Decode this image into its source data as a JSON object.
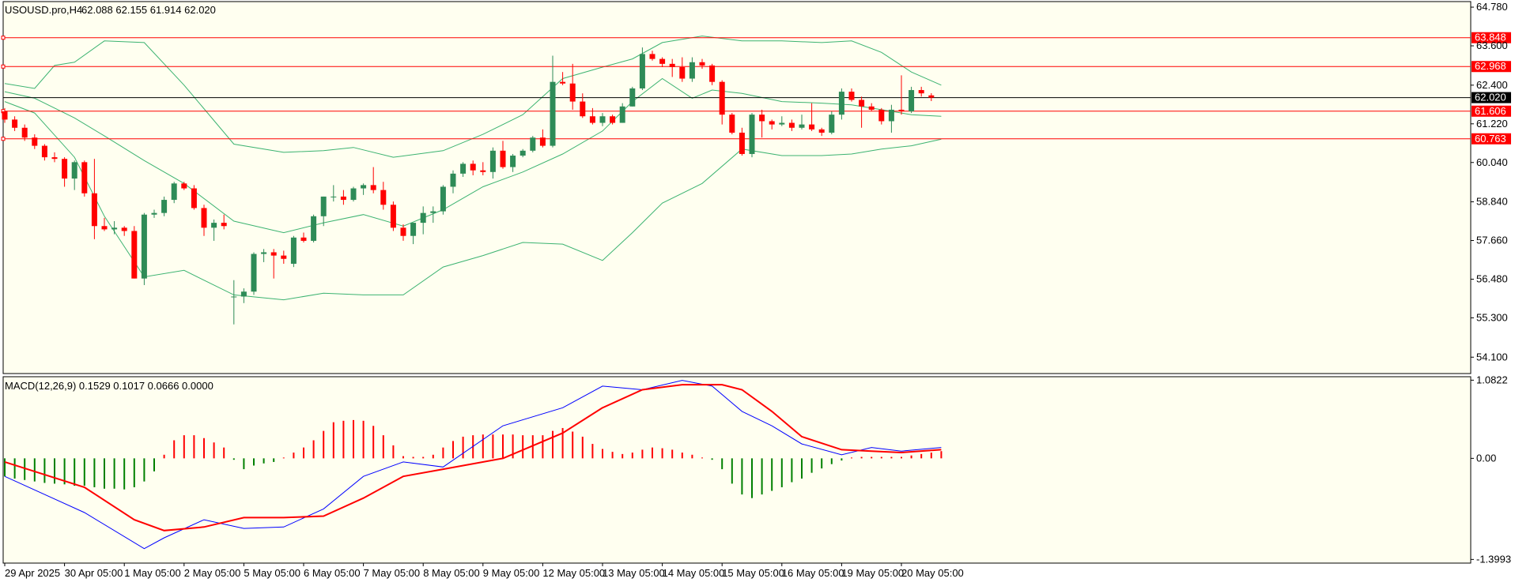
{
  "header": {
    "symbol_info": "USOUSD.pro,H4",
    "ohlc": "62.088 62.155 61.914 62.020",
    "macd_info": "MACD(12,26,9) 0.1529 0.1017 0.0666 0.0000"
  },
  "colors": {
    "background": "#fffff0",
    "frame": "#000000",
    "bull_candle": "#2e8b57",
    "bear_candle": "#ff0000",
    "bollinger": "#3cb371",
    "hline": "#ff0000",
    "current_line": "#000000",
    "macd_line": "#0000ff",
    "signal_line": "#ff0000",
    "hist_positive": "#ff0000",
    "hist_negative": "#008000"
  },
  "chart_data": [
    {
      "type": "candlestick",
      "name": "price",
      "ylim": [
        53.6,
        64.95
      ],
      "y_ticks": [
        "64.780",
        "63.600",
        "62.400",
        "61.220",
        "60.040",
        "58.840",
        "57.660",
        "56.480",
        "55.300",
        "54.100"
      ],
      "x_ticks": [
        "29 Apr 2025",
        "30 Apr 05:00",
        "1 May 05:00",
        "2 May 05:00",
        "5 May 05:00",
        "6 May 05:00",
        "7 May 05:00",
        "8 May 05:00",
        "9 May 05:00",
        "12 May 05:00",
        "13 May 05:00",
        "14 May 05:00",
        "15 May 05:00",
        "16 May 05:00",
        "19 May 05:00",
        "20 May 05:00"
      ],
      "horizontal_lines": [
        {
          "label": "63.848",
          "value": 63.848
        },
        {
          "label": "62.968",
          "value": 62.968
        },
        {
          "label": "61.606",
          "value": 61.606
        },
        {
          "label": "60.763",
          "value": 60.763
        }
      ],
      "current_price": {
        "label": "62.020",
        "value": 62.02
      },
      "candles": [
        [
          61.6,
          61.7,
          61.25,
          61.35
        ],
        [
          61.35,
          61.45,
          61.0,
          61.1
        ],
        [
          61.1,
          61.2,
          60.7,
          60.8
        ],
        [
          60.8,
          60.9,
          60.45,
          60.55
        ],
        [
          60.55,
          60.6,
          60.1,
          60.2
        ],
        [
          60.2,
          60.35,
          60.05,
          60.15
        ],
        [
          60.15,
          60.2,
          59.3,
          59.55
        ],
        [
          59.55,
          60.1,
          59.2,
          60.05
        ],
        [
          60.05,
          60.1,
          59.0,
          59.1
        ],
        [
          59.1,
          60.15,
          57.7,
          58.1
        ],
        [
          58.1,
          58.35,
          57.95,
          58.0
        ],
        [
          58.0,
          58.25,
          57.85,
          58.05
        ],
        [
          58.05,
          58.1,
          57.8,
          57.95
        ],
        [
          57.95,
          58.1,
          56.5,
          56.5
        ],
        [
          56.5,
          58.5,
          56.3,
          58.45
        ],
        [
          58.45,
          58.6,
          58.35,
          58.5
        ],
        [
          58.5,
          59.0,
          58.4,
          58.9
        ],
        [
          58.9,
          59.45,
          58.8,
          59.4
        ],
        [
          59.4,
          59.45,
          59.2,
          59.25
        ],
        [
          59.25,
          59.35,
          58.6,
          58.65
        ],
        [
          58.65,
          58.75,
          57.8,
          58.05
        ],
        [
          58.05,
          58.3,
          57.65,
          58.2
        ],
        [
          58.2,
          58.45,
          58.0,
          58.1
        ],
        [
          55.95,
          56.45,
          55.1,
          55.95
        ],
        [
          55.95,
          56.2,
          55.75,
          56.1
        ],
        [
          56.1,
          57.3,
          56.0,
          57.25
        ],
        [
          57.25,
          57.4,
          57.0,
          57.3
        ],
        [
          57.3,
          57.4,
          56.5,
          57.2
        ],
        [
          57.2,
          57.35,
          56.95,
          57.1
        ],
        [
          56.95,
          57.8,
          56.85,
          57.75
        ],
        [
          57.75,
          57.9,
          57.6,
          57.65
        ],
        [
          57.65,
          58.45,
          57.6,
          58.4
        ],
        [
          58.4,
          59.0,
          58.1,
          59.0
        ],
        [
          59.0,
          59.35,
          58.85,
          59.0
        ],
        [
          59.0,
          59.2,
          58.75,
          58.9
        ],
        [
          58.9,
          59.3,
          58.85,
          59.25
        ],
        [
          59.25,
          59.4,
          59.05,
          59.35
        ],
        [
          59.35,
          59.9,
          59.1,
          59.2
        ],
        [
          59.2,
          59.45,
          58.6,
          58.75
        ],
        [
          58.75,
          58.85,
          57.95,
          58.05
        ],
        [
          58.05,
          58.15,
          57.65,
          57.8
        ],
        [
          57.8,
          58.2,
          57.55,
          58.2
        ],
        [
          58.2,
          58.7,
          57.85,
          58.5
        ],
        [
          58.5,
          58.7,
          58.2,
          58.55
        ],
        [
          58.55,
          59.35,
          58.45,
          59.3
        ],
        [
          59.3,
          59.8,
          59.1,
          59.7
        ],
        [
          59.7,
          60.05,
          59.6,
          60.0
        ],
        [
          60.0,
          60.1,
          59.65,
          59.8
        ],
        [
          59.8,
          60.05,
          59.65,
          59.75
        ],
        [
          59.75,
          60.5,
          59.55,
          60.4
        ],
        [
          60.4,
          60.7,
          59.85,
          59.9
        ],
        [
          59.9,
          60.3,
          59.75,
          60.25
        ],
        [
          60.25,
          60.45,
          60.2,
          60.4
        ],
        [
          60.4,
          60.85,
          60.35,
          60.8
        ],
        [
          60.8,
          61.05,
          60.5,
          60.55
        ],
        [
          60.55,
          63.3,
          60.5,
          62.5
        ],
        [
          62.5,
          62.8,
          62.4,
          62.45
        ],
        [
          62.45,
          63.05,
          61.65,
          61.9
        ],
        [
          61.9,
          62.15,
          61.4,
          61.45
        ],
        [
          61.45,
          61.7,
          61.2,
          61.25
        ],
        [
          61.25,
          61.55,
          61.15,
          61.45
        ],
        [
          61.45,
          61.5,
          61.2,
          61.25
        ],
        [
          61.25,
          61.85,
          61.25,
          61.75
        ],
        [
          61.75,
          62.35,
          61.75,
          62.3
        ],
        [
          62.3,
          63.55,
          62.25,
          63.35
        ],
        [
          63.35,
          63.45,
          63.15,
          63.2
        ],
        [
          63.2,
          63.25,
          62.95,
          63.05
        ],
        [
          63.05,
          63.2,
          62.65,
          62.95
        ],
        [
          62.95,
          63.25,
          62.5,
          62.6
        ],
        [
          62.6,
          63.25,
          62.5,
          63.1
        ],
        [
          63.1,
          63.2,
          62.9,
          63.0
        ],
        [
          63.0,
          63.05,
          62.4,
          62.5
        ],
        [
          62.5,
          62.55,
          61.2,
          61.5
        ],
        [
          61.5,
          61.55,
          60.9,
          60.95
        ],
        [
          60.95,
          61.1,
          60.25,
          60.3
        ],
        [
          60.3,
          61.55,
          60.2,
          61.5
        ],
        [
          61.5,
          61.65,
          60.8,
          61.3
        ],
        [
          61.3,
          61.35,
          61.05,
          61.2
        ],
        [
          61.2,
          61.45,
          61.15,
          61.25
        ],
        [
          61.25,
          61.35,
          61.0,
          61.1
        ],
        [
          61.1,
          61.5,
          61.05,
          61.2
        ],
        [
          61.2,
          61.85,
          61.0,
          61.05
        ],
        [
          61.05,
          61.1,
          60.85,
          60.95
        ],
        [
          60.95,
          61.6,
          60.9,
          61.5
        ],
        [
          61.5,
          62.3,
          61.35,
          62.2
        ],
        [
          62.2,
          62.3,
          61.9,
          61.95
        ],
        [
          61.95,
          62.05,
          61.1,
          61.75
        ],
        [
          61.75,
          61.85,
          61.6,
          61.65
        ],
        [
          61.65,
          61.7,
          61.2,
          61.3
        ],
        [
          61.3,
          61.8,
          60.95,
          61.65
        ],
        [
          61.65,
          62.7,
          61.5,
          61.6
        ],
        [
          61.6,
          62.35,
          61.55,
          62.25
        ],
        [
          62.25,
          62.35,
          62.05,
          62.15
        ],
        [
          62.088,
          62.155,
          61.914,
          62.02
        ]
      ],
      "bollinger_upper": [
        [
          0,
          62.45
        ],
        [
          3,
          62.3
        ],
        [
          5,
          63.0
        ],
        [
          7,
          63.1
        ],
        [
          10,
          63.75
        ],
        [
          14,
          63.7
        ],
        [
          18,
          62.4
        ],
        [
          23,
          60.6
        ],
        [
          28,
          60.35
        ],
        [
          32,
          60.4
        ],
        [
          35,
          60.5
        ],
        [
          39,
          60.2
        ],
        [
          44,
          60.4
        ],
        [
          48,
          60.9
        ],
        [
          52,
          61.5
        ],
        [
          56,
          62.6
        ],
        [
          60,
          62.95
        ],
        [
          63,
          63.2
        ],
        [
          66,
          63.7
        ],
        [
          70,
          63.9
        ],
        [
          74,
          63.75
        ],
        [
          78,
          63.75
        ],
        [
          82,
          63.7
        ],
        [
          85,
          63.75
        ],
        [
          88,
          63.4
        ],
        [
          91,
          62.8
        ],
        [
          94,
          62.4
        ]
      ],
      "bollinger_middle": [
        [
          0,
          62.2
        ],
        [
          3,
          62.0
        ],
        [
          7,
          61.4
        ],
        [
          10,
          60.85
        ],
        [
          14,
          60.1
        ],
        [
          18,
          59.4
        ],
        [
          23,
          58.25
        ],
        [
          28,
          57.9
        ],
        [
          32,
          58.2
        ],
        [
          36,
          58.45
        ],
        [
          40,
          58.1
        ],
        [
          44,
          58.6
        ],
        [
          48,
          59.3
        ],
        [
          52,
          59.75
        ],
        [
          56,
          60.3
        ],
        [
          60,
          61.0
        ],
        [
          63,
          61.9
        ],
        [
          66,
          62.6
        ],
        [
          69,
          62.0
        ],
        [
          71,
          62.25
        ],
        [
          74,
          62.15
        ],
        [
          78,
          61.9
        ],
        [
          82,
          61.85
        ],
        [
          85,
          61.8
        ],
        [
          88,
          61.65
        ],
        [
          91,
          61.5
        ],
        [
          94,
          61.45
        ]
      ],
      "bollinger_lower": [
        [
          0,
          61.9
        ],
        [
          3,
          61.55
        ],
        [
          7,
          60.2
        ],
        [
          10,
          58.4
        ],
        [
          14,
          56.55
        ],
        [
          18,
          56.75
        ],
        [
          23,
          56.0
        ],
        [
          28,
          55.85
        ],
        [
          32,
          56.05
        ],
        [
          36,
          56.0
        ],
        [
          40,
          56.0
        ],
        [
          44,
          56.85
        ],
        [
          48,
          57.2
        ],
        [
          52,
          57.6
        ],
        [
          56,
          57.55
        ],
        [
          60,
          57.05
        ],
        [
          63,
          57.9
        ],
        [
          66,
          58.8
        ],
        [
          70,
          59.4
        ],
        [
          74,
          60.45
        ],
        [
          78,
          60.25
        ],
        [
          82,
          60.25
        ],
        [
          85,
          60.3
        ],
        [
          88,
          60.45
        ],
        [
          91,
          60.55
        ],
        [
          94,
          60.75
        ]
      ]
    },
    {
      "type": "macd",
      "name": "MACD(12,26,9)",
      "ylim": [
        -1.45,
        1.13
      ],
      "y_ticks": [
        "1.0822",
        "0.00",
        "-1.3993"
      ],
      "macd_line": [
        [
          0,
          -0.25
        ],
        [
          8,
          -0.75
        ],
        [
          14,
          -1.25
        ],
        [
          16,
          -1.1
        ],
        [
          20,
          -0.85
        ],
        [
          24,
          -0.97
        ],
        [
          28,
          -0.95
        ],
        [
          32,
          -0.7
        ],
        [
          36,
          -0.25
        ],
        [
          40,
          -0.05
        ],
        [
          44,
          -0.12
        ],
        [
          50,
          0.45
        ],
        [
          56,
          0.7
        ],
        [
          60,
          1.0
        ],
        [
          64,
          0.95
        ],
        [
          68,
          1.08
        ],
        [
          71,
          1.0
        ],
        [
          74,
          0.65
        ],
        [
          77,
          0.45
        ],
        [
          80,
          0.2
        ],
        [
          84,
          0.05
        ],
        [
          87,
          0.15
        ],
        [
          90,
          0.1
        ],
        [
          94,
          0.15
        ]
      ],
      "signal_line": [
        [
          0,
          -0.05
        ],
        [
          8,
          -0.4
        ],
        [
          13,
          -0.85
        ],
        [
          16,
          -1.0
        ],
        [
          20,
          -0.95
        ],
        [
          24,
          -0.82
        ],
        [
          28,
          -0.82
        ],
        [
          32,
          -0.8
        ],
        [
          36,
          -0.55
        ],
        [
          40,
          -0.25
        ],
        [
          44,
          -0.15
        ],
        [
          50,
          0.0
        ],
        [
          56,
          0.35
        ],
        [
          60,
          0.7
        ],
        [
          64,
          0.95
        ],
        [
          68,
          1.02
        ],
        [
          72,
          1.02
        ],
        [
          74,
          0.95
        ],
        [
          77,
          0.65
        ],
        [
          80,
          0.3
        ],
        [
          84,
          0.12
        ],
        [
          87,
          0.1
        ],
        [
          90,
          0.08
        ],
        [
          94,
          0.12
        ]
      ],
      "histogram": [
        -0.25,
        -0.28,
        -0.3,
        -0.32,
        -0.34,
        -0.35,
        -0.36,
        -0.38,
        -0.38,
        -0.4,
        -0.42,
        -0.42,
        -0.43,
        -0.4,
        -0.32,
        -0.18,
        0.05,
        0.25,
        0.32,
        0.32,
        0.28,
        0.22,
        0.15,
        -0.02,
        -0.15,
        -0.1,
        -0.07,
        -0.05,
        0.01,
        0.08,
        0.15,
        0.25,
        0.38,
        0.5,
        0.52,
        0.53,
        0.52,
        0.45,
        0.32,
        0.18,
        0.03,
        0.02,
        0.02,
        0.05,
        0.15,
        0.24,
        0.3,
        0.32,
        0.33,
        0.33,
        0.33,
        0.33,
        0.32,
        0.32,
        0.32,
        0.38,
        0.42,
        0.37,
        0.3,
        0.2,
        0.13,
        0.09,
        0.06,
        0.08,
        0.12,
        0.15,
        0.14,
        0.12,
        0.08,
        0.05,
        0.0,
        -0.02,
        -0.15,
        -0.35,
        -0.5,
        -0.55,
        -0.5,
        -0.45,
        -0.4,
        -0.33,
        -0.28,
        -0.2,
        -0.14,
        -0.08,
        -0.03,
        0.0,
        0.02,
        0.02,
        0.02,
        0.02,
        0.02,
        0.04,
        0.06,
        0.08,
        0.1
      ]
    }
  ]
}
